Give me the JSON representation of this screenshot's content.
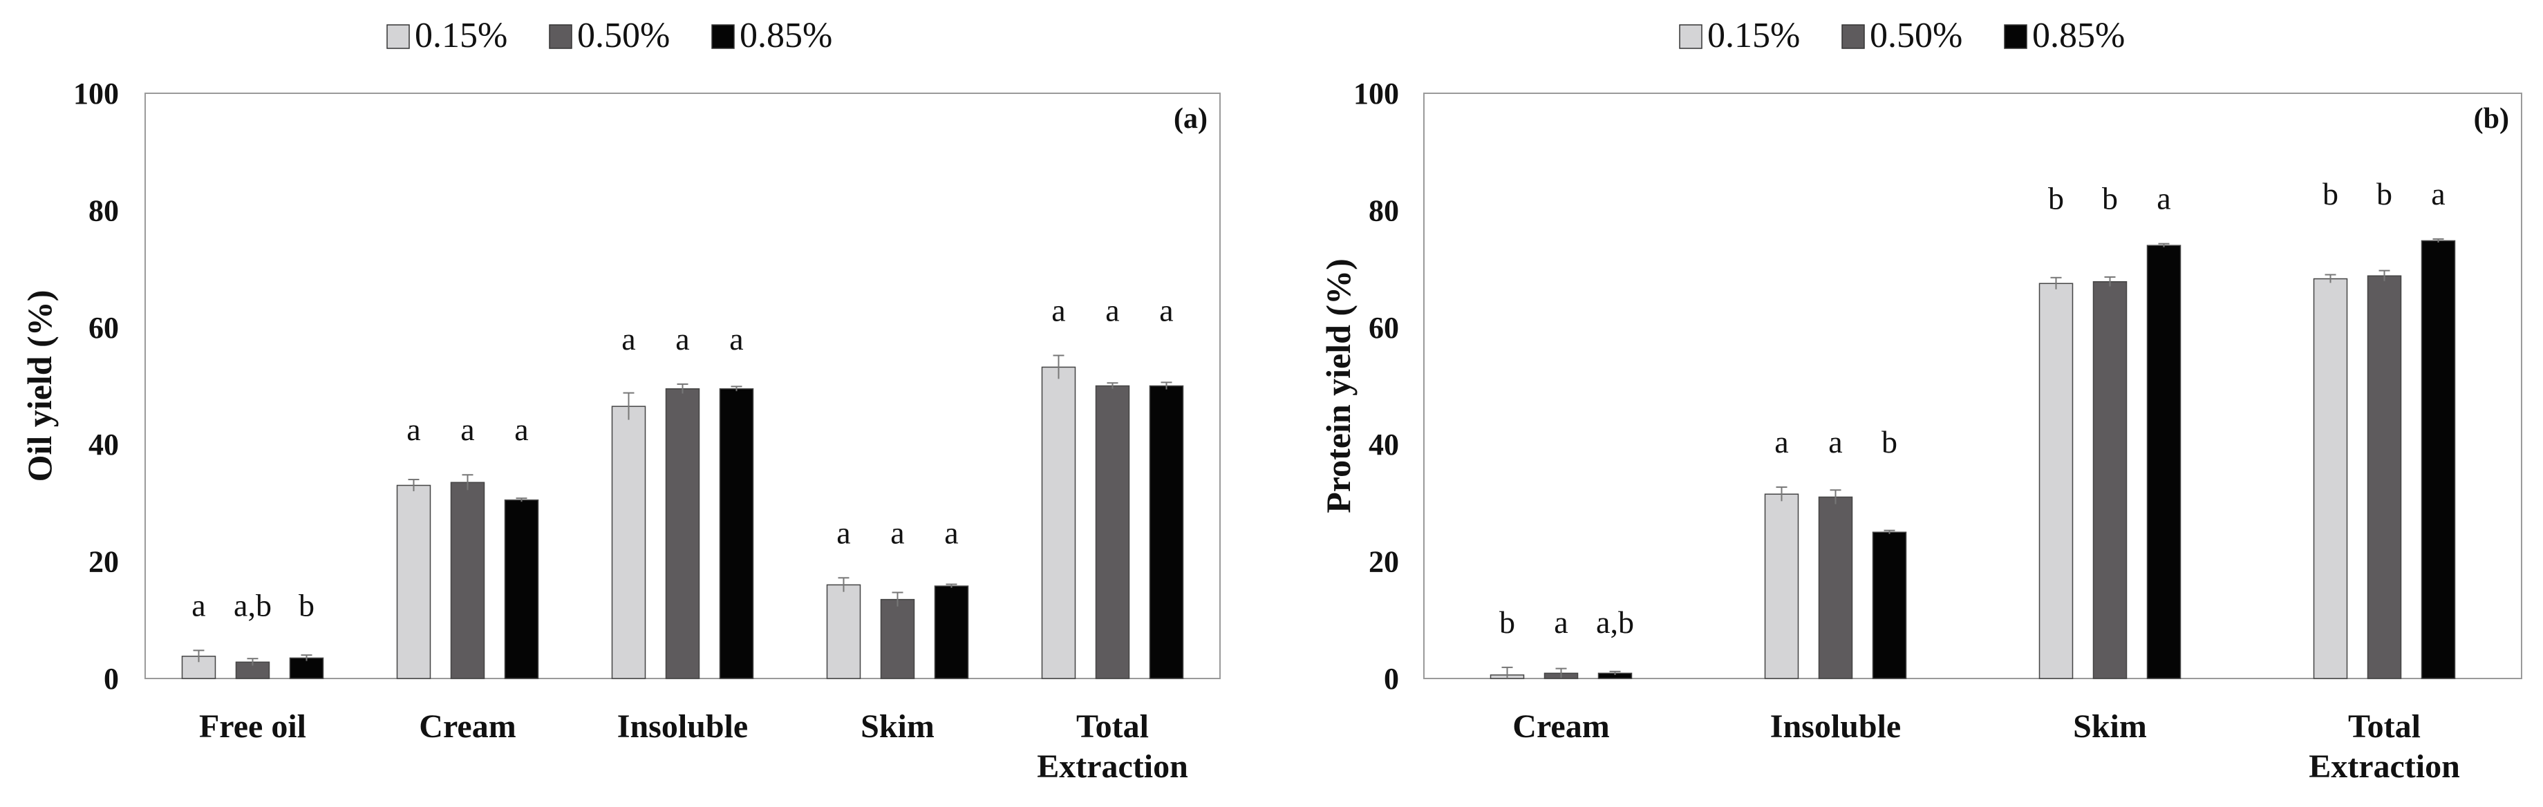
{
  "legend": {
    "labels": [
      "0.15%",
      "0.50%",
      "0.85%"
    ],
    "colors": [
      "#d4d4d6",
      "#5e5b5d",
      "#050505"
    ]
  },
  "chart_data": [
    {
      "type": "bar",
      "panel_label": "(a)",
      "ylabel": "Oil yield (%)",
      "ylim": [
        0,
        100
      ],
      "yticks": [
        "0",
        "20",
        "40",
        "60",
        "80",
        "100"
      ],
      "categories": [
        "Free oil",
        "Cream",
        "Insoluble",
        "Skim",
        "Total Extraction"
      ],
      "category_lines": [
        [
          "Free oil"
        ],
        [
          "Cream"
        ],
        [
          "Insoluble"
        ],
        [
          "Skim"
        ],
        [
          "Total",
          "Extraction"
        ]
      ],
      "series": [
        {
          "name": "0.15%",
          "values": [
            3.8,
            33.0,
            46.5,
            16.0,
            53.2
          ],
          "errors": [
            1.0,
            1.0,
            2.3,
            1.2,
            2.0
          ]
        },
        {
          "name": "0.50%",
          "values": [
            2.8,
            33.5,
            49.5,
            13.5,
            50.0
          ],
          "errors": [
            0.6,
            1.3,
            0.8,
            1.2,
            0.5
          ]
        },
        {
          "name": "0.85%",
          "values": [
            3.5,
            30.5,
            49.5,
            15.8,
            50.0
          ],
          "errors": [
            0.5,
            0.3,
            0.4,
            0.3,
            0.6
          ]
        }
      ],
      "significance": [
        [
          "a",
          "a",
          "a",
          "a",
          "a"
        ],
        [
          "a,b",
          "a",
          "a",
          "a",
          "a"
        ],
        [
          "b",
          "a",
          "a",
          "a",
          "a"
        ]
      ]
    },
    {
      "type": "bar",
      "panel_label": "(b)",
      "ylabel": "Protein yield (%)",
      "ylim": [
        0,
        100
      ],
      "yticks": [
        "0",
        "20",
        "40",
        "60",
        "80",
        "100"
      ],
      "categories": [
        "Cream",
        "Insoluble",
        "Skim",
        "Total Extraction"
      ],
      "category_lines": [
        [
          "Cream"
        ],
        [
          "Insoluble"
        ],
        [
          "Skim"
        ],
        [
          "Total",
          "Extraction"
        ]
      ],
      "series": [
        {
          "name": "0.15%",
          "values": [
            0.6,
            31.5,
            67.5,
            68.3
          ],
          "errors": [
            1.3,
            1.2,
            1.0,
            0.7
          ]
        },
        {
          "name": "0.50%",
          "values": [
            0.9,
            31.0,
            67.8,
            68.8
          ],
          "errors": [
            0.8,
            1.2,
            0.8,
            0.9
          ]
        },
        {
          "name": "0.85%",
          "values": [
            0.9,
            25.0,
            74.0,
            74.8
          ],
          "errors": [
            0.3,
            0.3,
            0.3,
            0.3
          ]
        }
      ],
      "significance": [
        [
          "b",
          "a",
          "b",
          "b"
        ],
        [
          "a",
          "a",
          "b",
          "b"
        ],
        [
          "a,b",
          "b",
          "a",
          "a"
        ]
      ]
    }
  ]
}
